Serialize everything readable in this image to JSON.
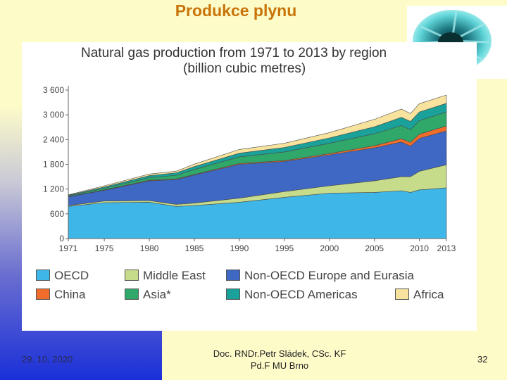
{
  "slide": {
    "title": "Produkce plynu",
    "footer_date": "29. 10. 2020",
    "footer_author_line1": "Doc. RNDr.Petr Sládek, CSc. KF",
    "footer_author_line2": "Pd.F MU Brno",
    "page_number": "32",
    "title_color": "#c8740a"
  },
  "chart_data": {
    "type": "area",
    "title": "Natural gas production from 1971 to 2013 by region",
    "subtitle": "(billion cubic metres)",
    "stacked": true,
    "x": [
      1971,
      1975,
      1980,
      1983,
      1985,
      1990,
      1995,
      2000,
      2005,
      2008,
      2009,
      2010,
      2013
    ],
    "xticks": [
      "1971",
      "1975",
      "1980",
      "1985",
      "1990",
      "1995",
      "2000",
      "2005",
      "2010",
      "2013"
    ],
    "xtick_values": [
      1971,
      1975,
      1980,
      1985,
      1990,
      1995,
      2000,
      2005,
      2010,
      2013
    ],
    "yticks": [
      "0",
      "600",
      "1 200",
      "1 800",
      "2 400",
      "3 000",
      "3 600"
    ],
    "ytick_values": [
      0,
      600,
      1200,
      1800,
      2400,
      3000,
      3600
    ],
    "ylim": [
      0,
      3600
    ],
    "xlim": [
      1971,
      2013
    ],
    "series": [
      {
        "name": "OECD",
        "color": "#3fb6e8",
        "values": [
          780,
          870,
          880,
          780,
          800,
          880,
          1000,
          1100,
          1120,
          1160,
          1120,
          1180,
          1230
        ]
      },
      {
        "name": "Middle East",
        "color": "#c6dc8a",
        "values": [
          20,
          40,
          40,
          50,
          60,
          100,
          140,
          180,
          280,
          340,
          380,
          450,
          560
        ]
      },
      {
        "name": "Non-OECD Europe and Eurasia",
        "color": "#3f68c4",
        "values": [
          210,
          260,
          480,
          600,
          680,
          820,
          730,
          750,
          800,
          840,
          740,
          800,
          820
        ]
      },
      {
        "name": "China",
        "color": "#f26c2c",
        "values": [
          5,
          10,
          15,
          15,
          15,
          20,
          20,
          30,
          50,
          80,
          90,
          100,
          120
        ]
      },
      {
        "name": "Asia*",
        "color": "#2fa86a",
        "values": [
          15,
          40,
          60,
          90,
          120,
          160,
          210,
          250,
          290,
          320,
          310,
          330,
          340
        ]
      },
      {
        "name": "Non-OECD Americas",
        "color": "#19a19a",
        "values": [
          20,
          30,
          50,
          60,
          70,
          90,
          110,
          130,
          170,
          200,
          200,
          210,
          210
        ]
      },
      {
        "name": "Africa",
        "color": "#f7e29e",
        "values": [
          10,
          30,
          40,
          40,
          60,
          90,
          100,
          130,
          180,
          200,
          190,
          200,
          200
        ]
      }
    ],
    "legend": [
      [
        "OECD",
        "Middle East",
        "Non-OECD Europe and Eurasia"
      ],
      [
        "China",
        "Asia*",
        "Non-OECD Americas",
        "Africa"
      ]
    ],
    "grid": false,
    "legend_position": "bottom"
  }
}
